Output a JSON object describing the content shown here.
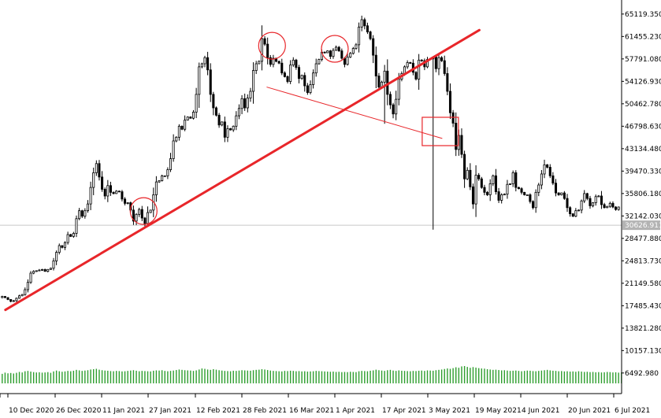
{
  "chart_data": {
    "type": "candlestick",
    "y_axis": {
      "ticks": [
        "65119.350",
        "61455.230",
        "57791.080",
        "54126.930",
        "50462.780",
        "46798.630",
        "43134.480",
        "39470.330",
        "35806.180",
        "32142.030",
        "28477.880",
        "24813.730",
        "21149.580",
        "17485.430",
        "13821.280",
        "10157.130",
        "6492.980"
      ],
      "ylim": [
        4800,
        66900
      ],
      "position": "right"
    },
    "x_axis": {
      "ticks": [
        "10 Dec 2020",
        "26 Dec 2020",
        "11 Jan 2021",
        "27 Jan 2021",
        "12 Feb 2021",
        "28 Feb 2021",
        "16 Mar 2021",
        "1 Apr 2021",
        "17 Apr 2021",
        "3 May 2021",
        "19 May 2021",
        "4 Jun 2021",
        "20 Jun 2021",
        "6 Jul 2021"
      ]
    },
    "current_price_label": "30626.911",
    "current_price": 30626.911,
    "closes": [
      19000,
      18800,
      18500,
      18200,
      18300,
      18700,
      19100,
      19300,
      20100,
      21300,
      22800,
      23100,
      23200,
      23300,
      23400,
      23100,
      23400,
      23600,
      24800,
      26200,
      27300,
      27000,
      27800,
      29100,
      28800,
      29300,
      31700,
      33000,
      32100,
      33000,
      34100,
      36800,
      39200,
      40700,
      38500,
      36500,
      35400,
      37100,
      36000,
      35800,
      36200,
      36100,
      34900,
      34200,
      34300,
      33100,
      31300,
      32400,
      33200,
      31800,
      30900,
      32700,
      33100,
      35600,
      37700,
      37900,
      38700,
      38700,
      39700,
      41500,
      44400,
      45000,
      46800,
      46300,
      47800,
      48300,
      48100,
      49100,
      52000,
      56500,
      57000,
      58000,
      56000,
      52000,
      49800,
      48600,
      47000,
      47500,
      45000,
      46400,
      46200,
      46800,
      48500,
      49700,
      51300,
      49800,
      51400,
      52500,
      55900,
      57000,
      57400,
      61100,
      60200,
      58000,
      56900,
      57900,
      57400,
      57100,
      55500,
      54900,
      54100,
      56800,
      57600,
      56400,
      54600,
      55100,
      53400,
      52300,
      53600,
      55500,
      57000,
      57700,
      58900,
      58800,
      59100,
      58200,
      59200,
      59700,
      59100,
      57900,
      56900,
      58100,
      58700,
      59500,
      60100,
      63000,
      64200,
      63200,
      62200,
      61100,
      58400,
      55000,
      53200,
      54000,
      55800,
      52000,
      50300,
      48800,
      51200,
      54500,
      55400,
      56500,
      57200,
      57100,
      55600,
      54500,
      57600,
      57500,
      56500,
      57700,
      57800,
      58100,
      56200,
      58000,
      57500,
      55400,
      52500,
      49000,
      47300,
      43000,
      45300,
      42200,
      38200,
      39600,
      36900,
      34100,
      38800,
      38200,
      36800,
      36000,
      35600,
      37400,
      38700,
      36100,
      34700,
      35600,
      35700,
      37300,
      37400,
      39200,
      36800,
      36600,
      36000,
      35600,
      35600,
      34500,
      33500,
      36000,
      37200,
      39000,
      40500,
      40100,
      38700,
      37500,
      35900,
      35600,
      35900,
      35000,
      33500,
      32500,
      32100,
      33000,
      33100,
      34600,
      35800,
      35000,
      33800,
      34300,
      35300,
      35400,
      34000,
      33500,
      33700,
      34200,
      33600,
      33200,
      33600
    ],
    "volumes": [
      0.55,
      0.62,
      0.58,
      0.6,
      0.57,
      0.61,
      0.66,
      0.63,
      0.7,
      0.72,
      0.68,
      0.65,
      0.63,
      0.64,
      0.62,
      0.63,
      0.65,
      0.61,
      0.69,
      0.74,
      0.7,
      0.67,
      0.69,
      0.72,
      0.7,
      0.73,
      0.78,
      0.75,
      0.72,
      0.74,
      0.76,
      0.8,
      0.82,
      0.84,
      0.79,
      0.76,
      0.74,
      0.73,
      0.71,
      0.7,
      0.72,
      0.71,
      0.69,
      0.7,
      0.72,
      0.74,
      0.76,
      0.73,
      0.7,
      0.72,
      0.71,
      0.7,
      0.69,
      0.73,
      0.75,
      0.74,
      0.76,
      0.72,
      0.7,
      0.72,
      0.74,
      0.77,
      0.8,
      0.78,
      0.76,
      0.75,
      0.74,
      0.72,
      0.75,
      0.8,
      0.86,
      0.84,
      0.8,
      0.78,
      0.82,
      0.79,
      0.76,
      0.74,
      0.72,
      0.71,
      0.7,
      0.73,
      0.72,
      0.74,
      0.76,
      0.75,
      0.74,
      0.73,
      0.76,
      0.78,
      0.79,
      0.82,
      0.8,
      0.77,
      0.74,
      0.72,
      0.71,
      0.7,
      0.69,
      0.72,
      0.71,
      0.73,
      0.72,
      0.7,
      0.71,
      0.69,
      0.7,
      0.68,
      0.69,
      0.7,
      0.72,
      0.71,
      0.7,
      0.69,
      0.68,
      0.67,
      0.68,
      0.66,
      0.67,
      0.65,
      0.66,
      0.65,
      0.67,
      0.66,
      0.65,
      0.7,
      0.72,
      0.71,
      0.7,
      0.73,
      0.75,
      0.79,
      0.76,
      0.74,
      0.72,
      0.76,
      0.78,
      0.74,
      0.72,
      0.75,
      0.73,
      0.72,
      0.71,
      0.7,
      0.72,
      0.71,
      0.73,
      0.74,
      0.72,
      0.75,
      0.74,
      0.73,
      0.76,
      0.78,
      0.8,
      0.83,
      0.86,
      0.84,
      0.88,
      0.93,
      0.9,
      0.98,
      1.0,
      0.95,
      0.9,
      0.94,
      0.91,
      0.88,
      0.86,
      0.85,
      0.82,
      0.8,
      0.78,
      0.79,
      0.77,
      0.75,
      0.76,
      0.74,
      0.72,
      0.73,
      0.74,
      0.72,
      0.7,
      0.72,
      0.74,
      0.73,
      0.71,
      0.7,
      0.72,
      0.74,
      0.76,
      0.78,
      0.75,
      0.73,
      0.72,
      0.7,
      0.71,
      0.69,
      0.7,
      0.68,
      0.69,
      0.67,
      0.7,
      0.68,
      0.66,
      0.67,
      0.65,
      0.66,
      0.64,
      0.65,
      0.63,
      0.64,
      0.66,
      0.65,
      0.63,
      0.64,
      0.62,
      0.63
    ],
    "annotations": {
      "circles_at_bar": [
        49,
        94,
        116
      ],
      "circle_bar_offsets": [
        0,
        0,
        0
      ],
      "support_trendline": {
        "from": {
          "bar": 0,
          "price": 16800
        },
        "to": {
          "bar": 165,
          "price": 62500
        }
      },
      "neckline": {
        "from": {
          "bar": 91,
          "price": 53200
        },
        "to": {
          "bar": 152,
          "price": 44800
        }
      },
      "breakout_box_bar": 148
    },
    "colors": {
      "candle": "#000000",
      "volume": "#2e9e2e",
      "trendline": "#e8262a",
      "circle": "#e8262a",
      "current_price_tag": "#b3b3b3",
      "current_price_line": "#c8c8c8",
      "axis": "#000000"
    },
    "grid": false
  }
}
